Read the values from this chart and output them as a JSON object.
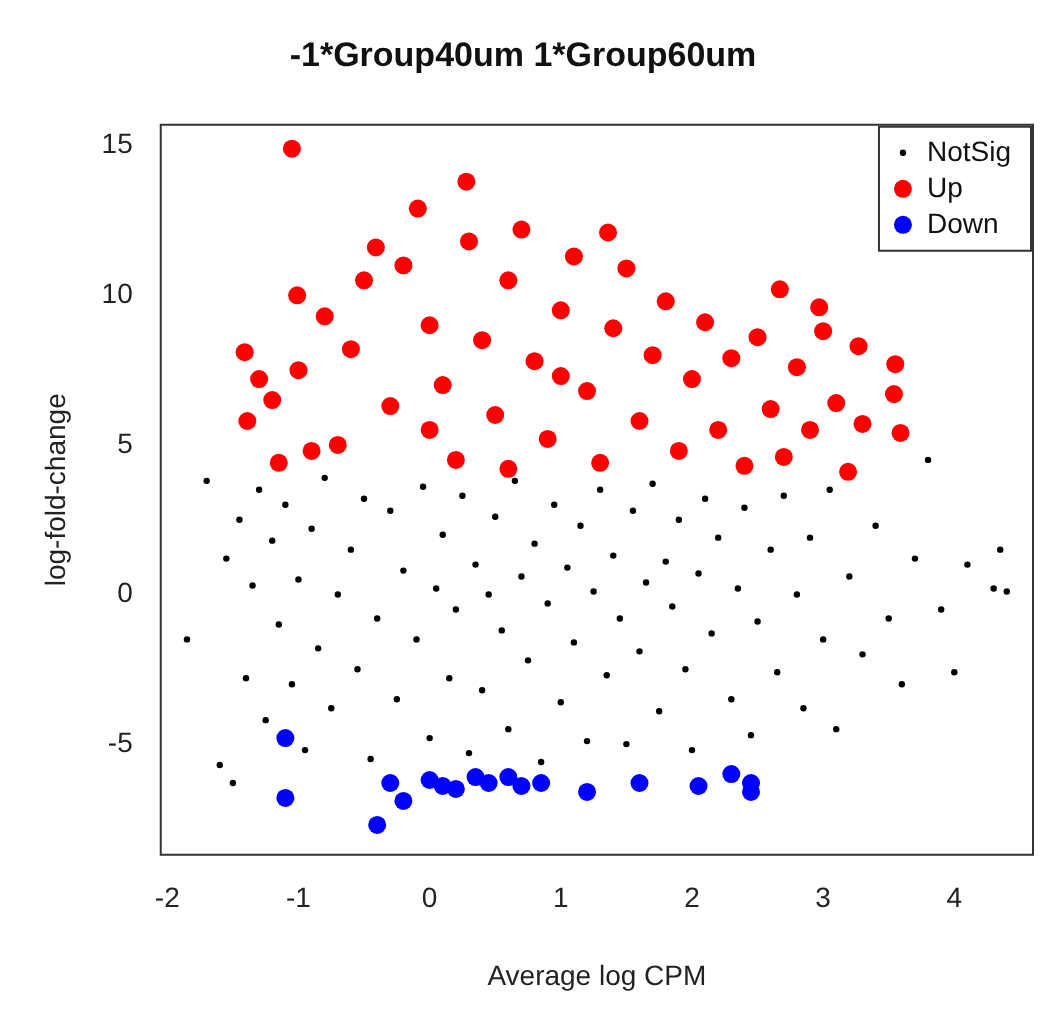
{
  "chart_data": {
    "type": "scatter",
    "title": "-1*Group40um 1*Group60um",
    "xlabel": "Average log CPM",
    "ylabel": "log-fold-change",
    "xlim": [
      -2.05,
      4.6
    ],
    "ylim": [
      -8.7,
      15.7
    ],
    "xticks": [
      -2,
      -1,
      0,
      1,
      2,
      3,
      4
    ],
    "yticks": [
      -5,
      0,
      5,
      10,
      15
    ],
    "grid": false,
    "legend": "top right",
    "marker": "circle",
    "series": [
      {
        "name": "NotSig",
        "color": "#000000",
        "x": [
          -1.85,
          -1.7,
          -1.6,
          -1.55,
          -1.5,
          -1.45,
          -1.4,
          -1.35,
          -1.3,
          -1.25,
          -1.2,
          -1.15,
          -1.1,
          -1.05,
          -1.0,
          -0.95,
          -0.9,
          -0.85,
          -0.8,
          -0.75,
          -0.7,
          -0.6,
          -0.55,
          -0.5,
          -0.45,
          -0.4,
          -0.3,
          -0.25,
          -0.2,
          -0.1,
          -0.05,
          0,
          0.05,
          0.1,
          0.15,
          0.2,
          0.25,
          0.3,
          0.35,
          0.4,
          0.45,
          0.5,
          0.55,
          0.6,
          0.65,
          0.7,
          0.75,
          0.8,
          0.85,
          0.9,
          0.95,
          1.0,
          1.05,
          1.1,
          1.15,
          1.2,
          1.25,
          1.3,
          1.35,
          1.4,
          1.45,
          1.5,
          1.55,
          1.6,
          1.65,
          1.7,
          1.75,
          1.8,
          1.85,
          1.9,
          1.95,
          2.0,
          2.05,
          2.1,
          2.15,
          2.2,
          2.3,
          2.35,
          2.4,
          2.45,
          2.5,
          2.6,
          2.65,
          2.7,
          2.8,
          2.85,
          2.9,
          3.0,
          3.05,
          3.1,
          3.2,
          3.3,
          3.4,
          3.5,
          3.6,
          3.7,
          3.8,
          3.9,
          4.0,
          4.1,
          4.3,
          4.35,
          4.4
        ],
        "values": [
          -1.5,
          3.8,
          -5.7,
          1.2,
          -6.3,
          2.5,
          -2.8,
          0.3,
          3.5,
          -4.2,
          1.8,
          -1.0,
          3.0,
          -3.0,
          0.5,
          -5.2,
          2.2,
          -1.8,
          3.9,
          -3.8,
          0.0,
          1.5,
          -2.5,
          3.2,
          -5.5,
          -0.8,
          2.8,
          -3.5,
          0.8,
          -1.5,
          3.6,
          -4.8,
          0.2,
          2.0,
          -2.8,
          -0.5,
          3.3,
          -5.3,
          1.0,
          -3.2,
          0.0,
          2.6,
          -1.2,
          -4.5,
          3.8,
          0.6,
          -2.2,
          1.7,
          -5.6,
          -0.3,
          3.0,
          -3.6,
          0.9,
          -1.6,
          2.3,
          -4.9,
          0.1,
          3.5,
          -2.7,
          1.3,
          -0.8,
          -5.0,
          2.8,
          -1.9,
          0.4,
          3.7,
          -3.9,
          1.1,
          -0.4,
          2.5,
          -2.5,
          -5.2,
          0.7,
          3.2,
          -1.3,
          1.9,
          -3.5,
          0.2,
          2.9,
          -4.7,
          -0.9,
          1.5,
          -2.6,
          3.3,
          0.0,
          -3.8,
          1.9,
          -1.5,
          3.5,
          -4.5,
          0.6,
          -2.0,
          2.3,
          -0.8,
          -3.0,
          1.2,
          4.5,
          -0.5,
          -2.6,
          1.0,
          0.2,
          1.5,
          0.1
        ]
      },
      {
        "name": "Up",
        "color": "#ff0000",
        "x": [
          -1.05,
          0.28,
          -0.09,
          -1.01,
          -1.41,
          -1.39,
          -1.15,
          -0.41,
          1.36,
          2.67,
          2.97,
          3.27,
          3.55,
          3.59,
          3.19,
          3.54,
          -1.2,
          -1.0,
          -0.8,
          -0.7,
          -0.6,
          -0.5,
          -0.3,
          -0.2,
          0,
          0.1,
          0.2,
          0.3,
          0.4,
          0.5,
          0.6,
          0.7,
          0.8,
          0.9,
          1.0,
          1.1,
          1.2,
          1.3,
          1.4,
          1.5,
          1.6,
          1.7,
          1.8,
          1.9,
          2.0,
          2.1,
          2.2,
          2.3,
          2.4,
          2.5,
          2.6,
          2.7,
          2.8,
          2.9,
          3.0,
          3.1,
          3.3,
          -0.9,
          -1.3,
          0.0,
          0.6,
          1.0
        ],
        "values": [
          14.9,
          13.8,
          12.9,
          10.0,
          8.1,
          5.8,
          4.4,
          11.6,
          12.1,
          10.2,
          9.6,
          8.3,
          7.7,
          5.4,
          4.1,
          6.7,
          6.5,
          7.5,
          9.3,
          5.0,
          8.2,
          10.5,
          6.3,
          11.0,
          9.0,
          7.0,
          4.5,
          11.8,
          8.5,
          6.0,
          10.5,
          12.2,
          7.8,
          5.2,
          9.5,
          11.3,
          6.8,
          4.4,
          8.9,
          10.9,
          5.8,
          8.0,
          9.8,
          4.8,
          7.2,
          9.1,
          5.5,
          7.9,
          4.3,
          8.6,
          6.2,
          4.6,
          7.6,
          5.5,
          8.8,
          6.4,
          5.7,
          4.8,
          7.2,
          5.5,
          4.2,
          7.3
        ]
      },
      {
        "name": "Down",
        "color": "#0000ff",
        "x": [
          -1.1,
          -1.1,
          -0.3,
          -0.2,
          -0.4,
          0,
          0.1,
          0.2,
          0.35,
          0.45,
          0.6,
          0.7,
          0.85,
          1.2,
          1.6,
          2.05,
          2.3,
          2.45,
          2.45
        ],
        "values": [
          -4.8,
          -6.8,
          -6.3,
          -6.9,
          -7.7,
          -6.2,
          -6.4,
          -6.5,
          -6.1,
          -6.3,
          -6.1,
          -6.4,
          -6.3,
          -6.6,
          -6.3,
          -6.4,
          -6.0,
          -6.3,
          -6.6
        ]
      }
    ]
  }
}
